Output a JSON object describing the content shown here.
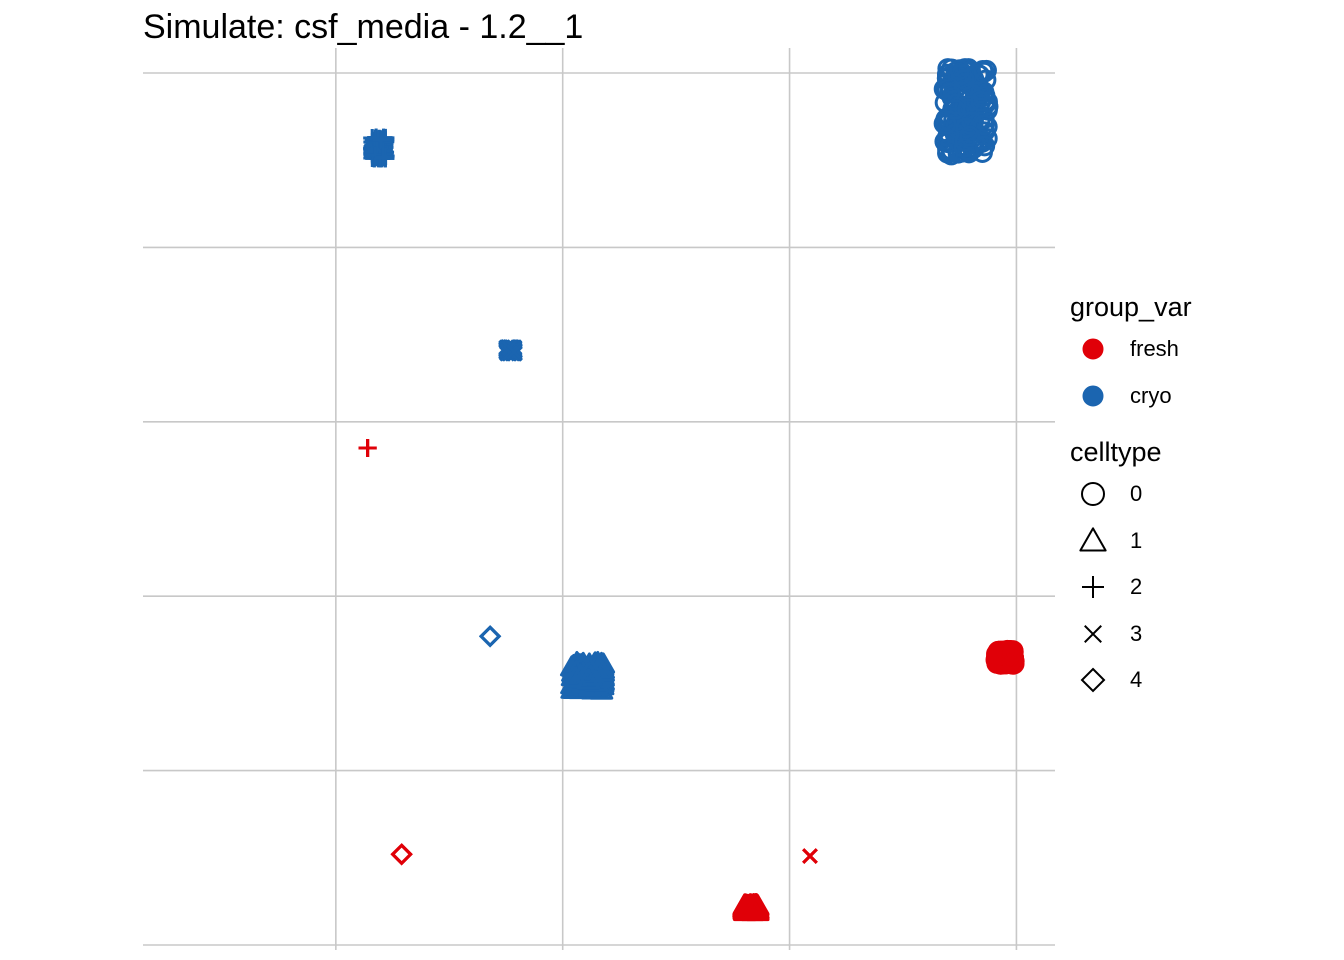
{
  "chart_data": {
    "type": "scatter",
    "title": "Simulate: csf_media - 1.2__1",
    "xlabel": "",
    "ylabel": "",
    "grid": true,
    "legend_position": "right",
    "legends": {
      "color": {
        "title": "group_var",
        "entries": [
          {
            "label": "fresh",
            "color": "#E00008"
          },
          {
            "label": "cryo",
            "color": "#1B65B0"
          }
        ]
      },
      "shape": {
        "title": "celltype",
        "entries": [
          {
            "label": "0",
            "shape": "circle"
          },
          {
            "label": "1",
            "shape": "triangle"
          },
          {
            "label": "2",
            "shape": "plus"
          },
          {
            "label": "3",
            "shape": "cross"
          },
          {
            "label": "4",
            "shape": "diamond"
          }
        ]
      }
    },
    "clusters": [
      {
        "group": "cryo",
        "celltype": "0",
        "x": 2.78,
        "y": 4.78,
        "spread_x": 0.1,
        "spread_y": 0.25
      },
      {
        "group": "cryo",
        "celltype": "2",
        "x": 0.19,
        "y": 4.57,
        "spread_x": 0.03,
        "spread_y": 0.06
      },
      {
        "group": "cryo",
        "celltype": "3",
        "x": 0.77,
        "y": 3.41,
        "spread_x": 0.02,
        "spread_y": 0.02
      },
      {
        "group": "fresh",
        "celltype": "2",
        "x": 0.14,
        "y": 2.85,
        "spread_x": 0.0,
        "spread_y": 0.0
      },
      {
        "group": "cryo",
        "celltype": "4",
        "x": 0.68,
        "y": 1.77,
        "spread_x": 0.0,
        "spread_y": 0.0
      },
      {
        "group": "cryo",
        "celltype": "1",
        "x": 1.11,
        "y": 1.54,
        "spread_x": 0.07,
        "spread_y": 0.08
      },
      {
        "group": "fresh",
        "celltype": "0",
        "x": 2.95,
        "y": 1.65,
        "spread_x": 0.04,
        "spread_y": 0.04
      },
      {
        "group": "fresh",
        "celltype": "4",
        "x": 0.29,
        "y": 0.52,
        "spread_x": 0.0,
        "spread_y": 0.0
      },
      {
        "group": "fresh",
        "celltype": "1",
        "x": 1.83,
        "y": 0.21,
        "spread_x": 0.03,
        "spread_y": 0.02
      },
      {
        "group": "fresh",
        "celltype": "3",
        "x": 2.09,
        "y": 0.51,
        "spread_x": 0.0,
        "spread_y": 0.0
      }
    ],
    "xlim": [
      -0.85,
      3.17
    ],
    "ylim": [
      0.0,
      5.0
    ]
  }
}
